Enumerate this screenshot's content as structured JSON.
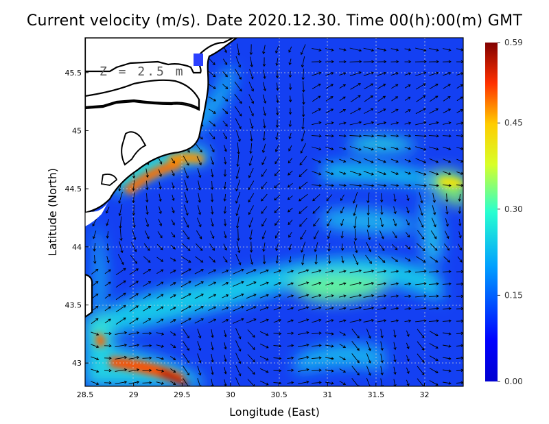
{
  "title": "Current velocity (m/s). Date 2020.12.30. Time 00(h):00(m) GMT",
  "depth_label": "Z = 2.5 m",
  "chart_data": {
    "type": "heatmap",
    "title": "Current velocity (m/s). Date 2020.12.30. Time 00(h):00(m) GMT",
    "xlabel": "Longitude (East)",
    "ylabel": "Latitude (North)",
    "xlim": [
      28.5,
      32.4
    ],
    "ylim": [
      42.8,
      45.8
    ],
    "x_ticks": [
      28.5,
      29,
      29.5,
      30,
      30.5,
      31,
      31.5,
      32
    ],
    "y_ticks": [
      43,
      43.5,
      44,
      44.5,
      45,
      45.5
    ],
    "grid": true,
    "colorbar": {
      "ticks": [
        "0.00",
        "0.15",
        "0.30",
        "0.45",
        "0.59"
      ],
      "vmin": 0.0,
      "vmax": 0.59,
      "colormap": "jet"
    },
    "colors": {
      "land": "#ffffff",
      "coast": "#000000",
      "vector": "#000000"
    }
  }
}
